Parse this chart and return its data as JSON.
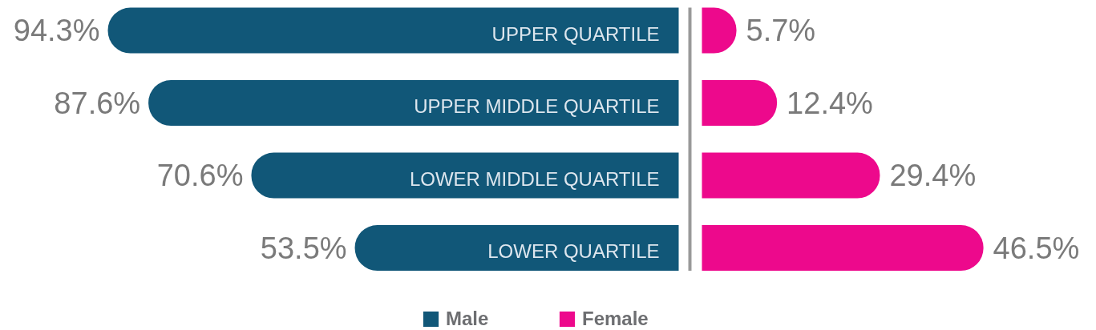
{
  "chart_data": [
    {
      "type": "bar",
      "orientation": "horizontal",
      "categories": [
        "UPPER QUARTILE",
        "UPPER MIDDLE QUARTILE",
        "LOWER MIDDLE QUARTILE",
        "LOWER QUARTILE"
      ],
      "series": [
        {
          "name": "Male",
          "color": "#115778",
          "values": [
            94.3,
            87.6,
            70.6,
            53.5
          ],
          "value_labels": [
            "94.3%",
            "87.6%",
            "70.6%",
            "53.5%"
          ]
        }
      ],
      "legend": "bottom"
    },
    {
      "type": "bar",
      "orientation": "horizontal",
      "categories": [
        null,
        null,
        null,
        null
      ],
      "series": [
        {
          "name": "Female",
          "color": "#ed098c",
          "values": [
            5.7,
            12.4,
            29.4,
            46.5
          ],
          "value_labels": [
            "5.7%",
            "12.4%",
            "29.4%",
            "46.5%"
          ]
        }
      ],
      "legend": "bottom"
    }
  ]
}
